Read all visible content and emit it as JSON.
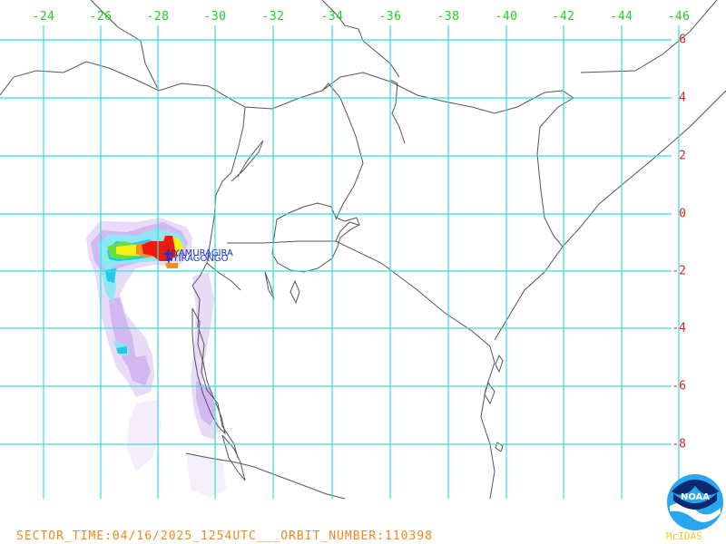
{
  "map": {
    "lon_ticks": [
      "-24",
      "-26",
      "-28",
      "-30",
      "-32",
      "-34",
      "-36",
      "-38",
      "-40",
      "-42",
      "-44",
      "-46"
    ],
    "lat_ticks": [
      "6",
      "4",
      "2",
      "0",
      "-2",
      "-4",
      "-6",
      "-8"
    ],
    "colors": {
      "grid": "#33dede",
      "coast": "#555555",
      "lon_labels": "#22cc22",
      "lat_labels": "#dd2222",
      "footer": "#ee8822"
    },
    "point_labels": [
      "NYAMURAGIRA",
      "NYIRAGONGO"
    ]
  },
  "footer": {
    "text": "SECTOR_TIME:04/16/2025_1254UTC___ORBIT_NUMBER:110398",
    "brand": "McIDAS"
  },
  "logo": {
    "text": "NOAA",
    "icon": "noaa-logo-icon"
  }
}
